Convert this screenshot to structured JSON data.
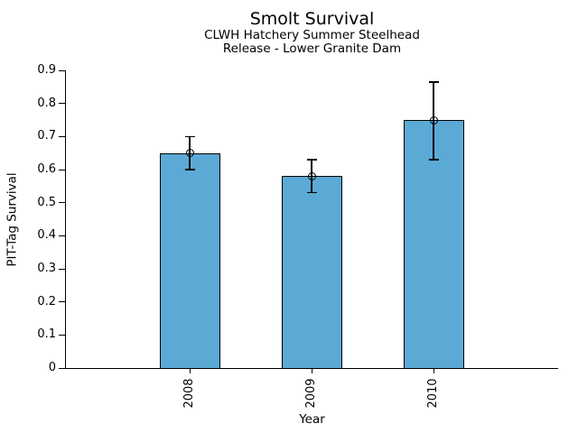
{
  "chart_data": {
    "type": "bar",
    "title": "Smolt Survival",
    "subtitle1": "CLWH Hatchery Summer Steelhead",
    "subtitle2": "Release - Lower Granite Dam",
    "xlabel": "Year",
    "ylabel": "PIT-Tag Survival",
    "categories": [
      "2008",
      "2009",
      "2010"
    ],
    "values": [
      0.65,
      0.58,
      0.75
    ],
    "error_low": [
      0.6,
      0.53,
      0.63
    ],
    "error_high": [
      0.7,
      0.63,
      0.865
    ],
    "ylim": [
      0,
      0.9
    ],
    "yticks": [
      0,
      0.1,
      0.2,
      0.3,
      0.4,
      0.5,
      0.6,
      0.7,
      0.8,
      0.9
    ],
    "ytick_labels": [
      "0",
      "0.1",
      "0.2",
      "0.3",
      "0.4",
      "0.5",
      "0.6",
      "0.7",
      "0.8",
      "0.9"
    ],
    "grid": false,
    "legend": "none",
    "marker": "open-circle",
    "bar_color": "#5BAAD5",
    "bar_edge_color": "#000000",
    "error_color": "#000000",
    "background_color": "#FFFFFF"
  }
}
